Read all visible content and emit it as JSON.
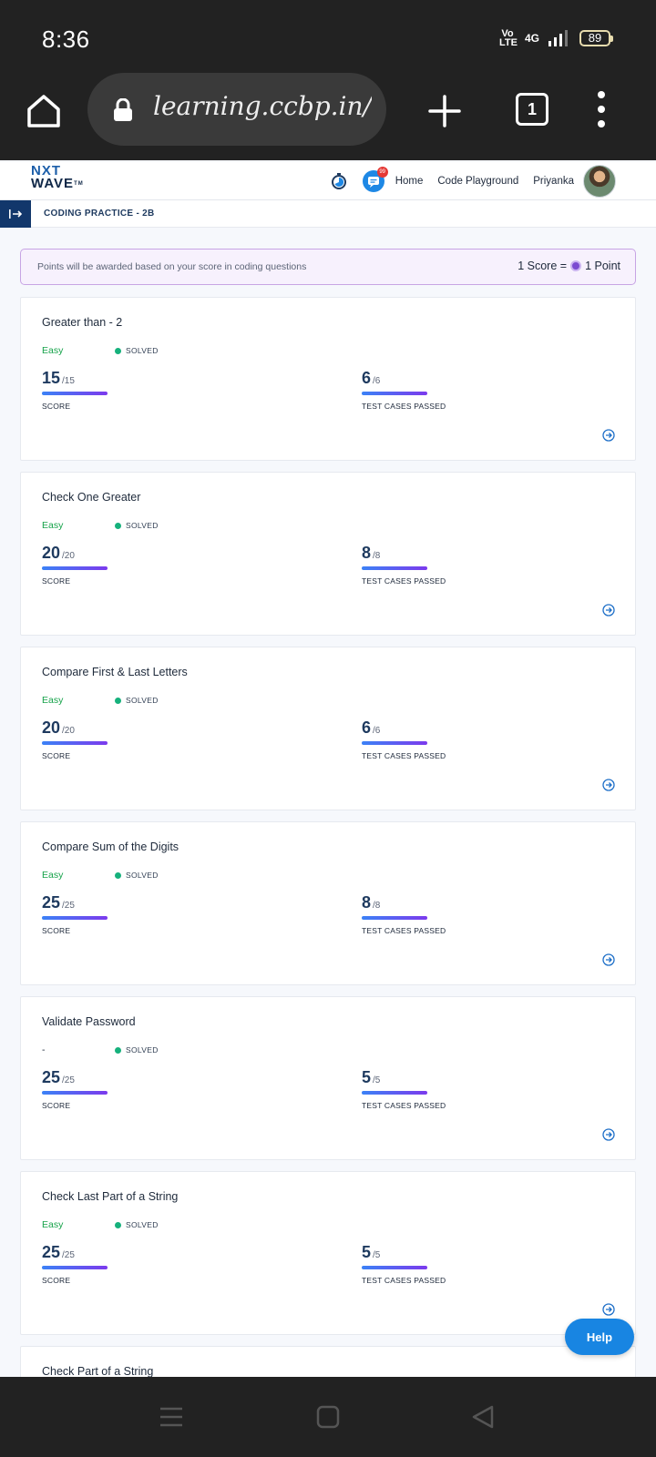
{
  "status_bar": {
    "time": "8:36",
    "volte_top": "Vo",
    "volte_bottom": "LTE",
    "network": "4G",
    "battery": "89"
  },
  "browser": {
    "url": "learning.ccbp.in/tech",
    "tab_count": "1"
  },
  "header": {
    "logo_line1": "NXT",
    "logo_line2": "WAVE",
    "logo_tm": "TM",
    "notification_badge": "99",
    "nav_home": "Home",
    "nav_playground": "Code Playground",
    "user_name": "Priyanka"
  },
  "subheader": {
    "title": "CODING PRACTICE - 2B"
  },
  "points_banner": {
    "message": "Points will be awarded based on your score in coding questions",
    "rate_left": "1 Score =",
    "rate_right": "1 Point"
  },
  "labels": {
    "score": "SCORE",
    "tests": "TEST CASES PASSED",
    "solved": "SOLVED"
  },
  "problems": [
    {
      "title": "Greater than - 2",
      "difficulty": "Easy",
      "status": "SOLVED",
      "score": "15",
      "score_max": "/15",
      "tests": "6",
      "tests_max": "/6",
      "score_ratio": 1,
      "tests_ratio": 1
    },
    {
      "title": "Check One Greater",
      "difficulty": "Easy",
      "status": "SOLVED",
      "score": "20",
      "score_max": "/20",
      "tests": "8",
      "tests_max": "/8",
      "score_ratio": 1,
      "tests_ratio": 1
    },
    {
      "title": "Compare First & Last Letters",
      "difficulty": "Easy",
      "status": "SOLVED",
      "score": "20",
      "score_max": "/20",
      "tests": "6",
      "tests_max": "/6",
      "score_ratio": 1,
      "tests_ratio": 1
    },
    {
      "title": "Compare Sum of the Digits",
      "difficulty": "Easy",
      "status": "SOLVED",
      "score": "25",
      "score_max": "/25",
      "tests": "8",
      "tests_max": "/8",
      "score_ratio": 1,
      "tests_ratio": 1
    },
    {
      "title": "Validate Password",
      "difficulty": "-",
      "status": "SOLVED",
      "score": "25",
      "score_max": "/25",
      "tests": "5",
      "tests_max": "/5",
      "score_ratio": 1,
      "tests_ratio": 1
    },
    {
      "title": "Check Last Part of a String",
      "difficulty": "Easy",
      "status": "SOLVED",
      "score": "25",
      "score_max": "/25",
      "tests": "5",
      "tests_max": "/5",
      "score_ratio": 1,
      "tests_ratio": 1
    },
    {
      "title": "Check Part of a String"
    }
  ],
  "help_label": "Help"
}
